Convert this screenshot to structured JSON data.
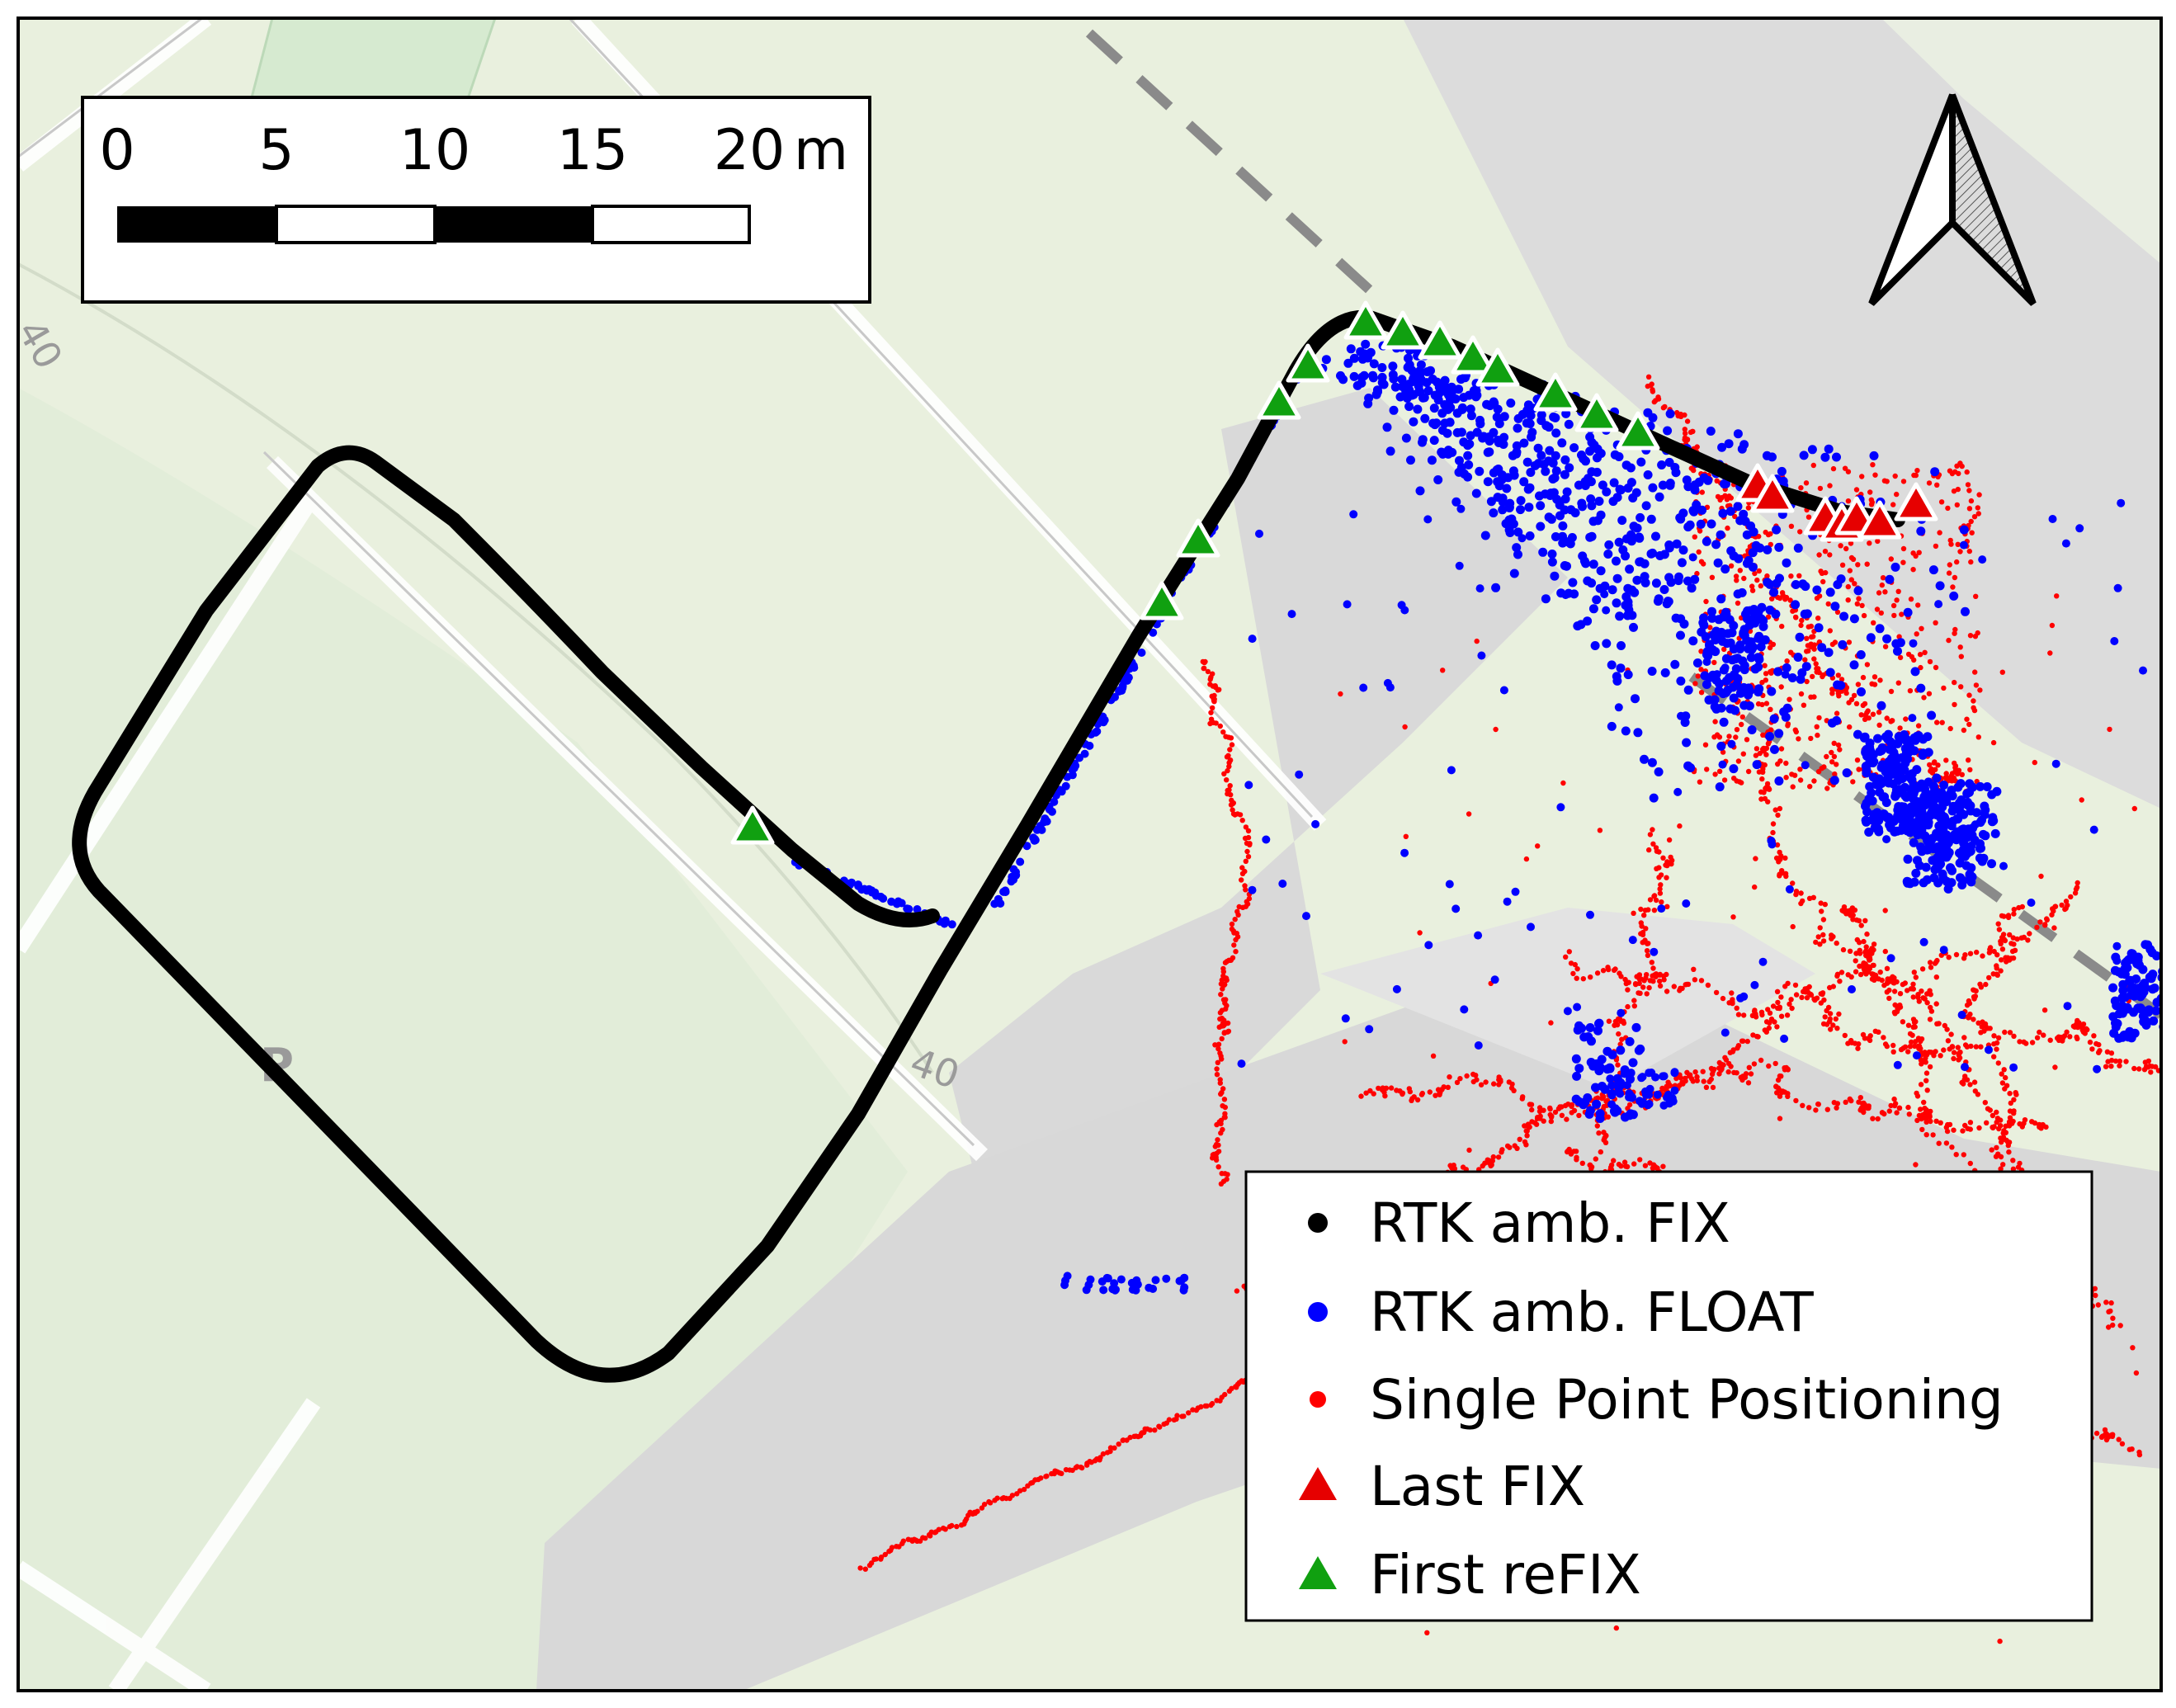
{
  "map": {
    "contour_labels": [
      "40",
      "40"
    ],
    "map_symbol": "P"
  },
  "scale_bar": {
    "ticks": [
      "0",
      "5",
      "10",
      "15",
      "20"
    ],
    "unit": "m",
    "segment_colors": [
      "#000000",
      "#ffffff",
      "#000000",
      "#ffffff"
    ]
  },
  "north_arrow": {
    "icon": "north-arrow-icon"
  },
  "legend": {
    "items": [
      {
        "label": "RTK amb. FIX",
        "marker": "circle",
        "color": "#000000"
      },
      {
        "label": "RTK amb. FLOAT",
        "marker": "circle",
        "color": "#0000ff"
      },
      {
        "label": "Single Point Positioning",
        "marker": "circle",
        "color": "#ff0000"
      },
      {
        "label": "Last FIX",
        "marker": "triangle",
        "color": "#e60000"
      },
      {
        "label": "First reFIX",
        "marker": "triangle",
        "color": "#10a010"
      }
    ]
  },
  "colors": {
    "fix": "#000000",
    "float": "#0000ff",
    "spp": "#ff0000",
    "last_fix": "#e60000",
    "first_refix": "#10a010"
  }
}
